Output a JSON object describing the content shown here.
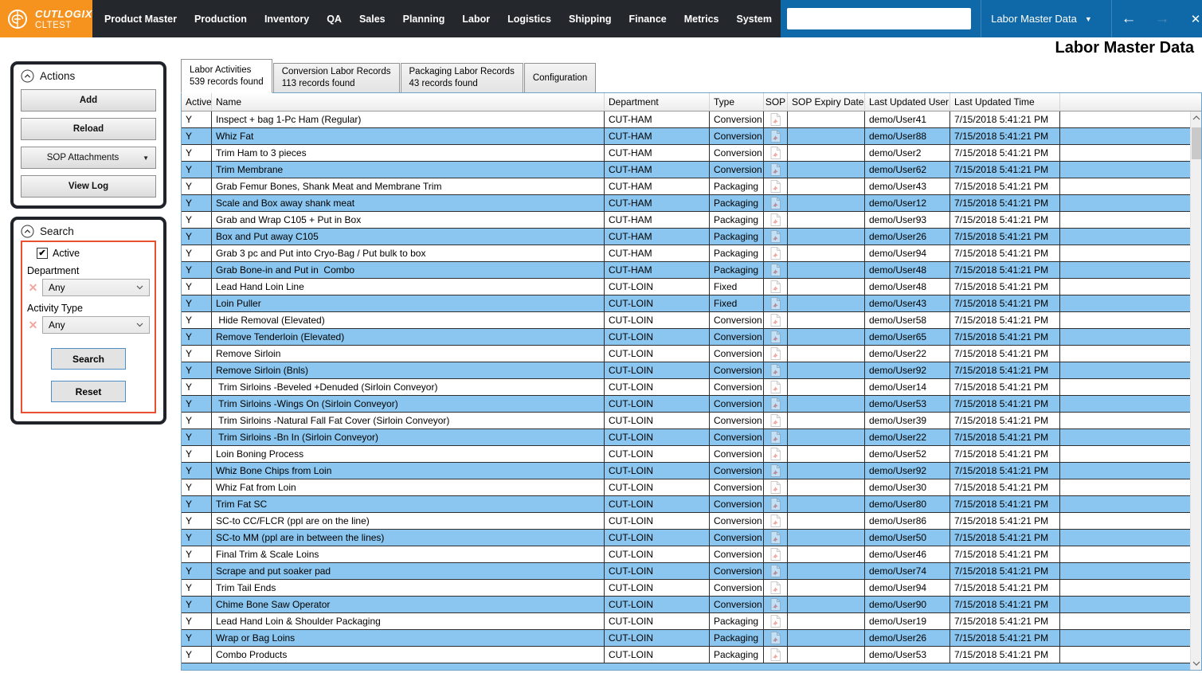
{
  "topbar": {
    "brand": {
      "name": "CUTLOGIX",
      "env": "CLTEST"
    },
    "menu": [
      "Product Master",
      "Production",
      "Inventory",
      "QA",
      "Sales",
      "Planning",
      "Labor",
      "Logistics",
      "Shipping",
      "Finance",
      "Metrics",
      "System"
    ],
    "search_value": "",
    "screen_selector": "Labor Master Data"
  },
  "page_title": "Labor Master Data",
  "sidebar": {
    "actions": {
      "title": "Actions",
      "add_label": "Add",
      "reload_label": "Reload",
      "sop_dropdown_label": "SOP Attachments",
      "view_log_label": "View Log"
    },
    "search": {
      "title": "Search",
      "active_label": "Active",
      "active_checked": true,
      "fields": [
        {
          "label": "Department",
          "value": "Any"
        },
        {
          "label": "Activity Type",
          "value": "Any"
        }
      ],
      "search_label": "Search",
      "reset_label": "Reset"
    }
  },
  "tabs": [
    {
      "label": "Labor Activities",
      "sub": "539 records found",
      "active": true
    },
    {
      "label": "Conversion Labor Records",
      "sub": "113 records found",
      "active": false
    },
    {
      "label": "Packaging Labor Records",
      "sub": "43 records found",
      "active": false
    },
    {
      "label": "Configuration",
      "sub": "",
      "active": false
    }
  ],
  "table": {
    "columns": [
      "Active",
      "Name",
      "Department",
      "Type",
      "SOP",
      "SOP Expiry Date",
      "Last Updated User",
      "Last Updated Time"
    ],
    "rows": [
      {
        "active": "Y",
        "name": "Inspect + bag 1-Pc Ham (Regular)",
        "department": "CUT-HAM",
        "type": "Conversion",
        "sop_expiry": "",
        "user": "demo/User41",
        "time": "7/15/2018 5:41:21 PM"
      },
      {
        "active": "Y",
        "name": "Whiz Fat",
        "department": "CUT-HAM",
        "type": "Conversion",
        "sop_expiry": "",
        "user": "demo/User88",
        "time": "7/15/2018 5:41:21 PM"
      },
      {
        "active": "Y",
        "name": "Trim Ham to 3 pieces",
        "department": "CUT-HAM",
        "type": "Conversion",
        "sop_expiry": "",
        "user": "demo/User2",
        "time": "7/15/2018 5:41:21 PM"
      },
      {
        "active": "Y",
        "name": "Trim Membrane",
        "department": "CUT-HAM",
        "type": "Conversion",
        "sop_expiry": "",
        "user": "demo/User62",
        "time": "7/15/2018 5:41:21 PM"
      },
      {
        "active": "Y",
        "name": "Grab Femur Bones, Shank Meat and Membrane Trim",
        "department": "CUT-HAM",
        "type": "Packaging",
        "sop_expiry": "",
        "user": "demo/User43",
        "time": "7/15/2018 5:41:21 PM"
      },
      {
        "active": "Y",
        "name": "Scale and Box away shank meat",
        "department": "CUT-HAM",
        "type": "Packaging",
        "sop_expiry": "",
        "user": "demo/User12",
        "time": "7/15/2018 5:41:21 PM"
      },
      {
        "active": "Y",
        "name": "Grab and Wrap C105 + Put in Box",
        "department": "CUT-HAM",
        "type": "Packaging",
        "sop_expiry": "",
        "user": "demo/User93",
        "time": "7/15/2018 5:41:21 PM"
      },
      {
        "active": "Y",
        "name": "Box and Put away C105",
        "department": "CUT-HAM",
        "type": "Packaging",
        "sop_expiry": "",
        "user": "demo/User26",
        "time": "7/15/2018 5:41:21 PM"
      },
      {
        "active": "Y",
        "name": "Grab 3 pc and Put into Cryo-Bag / Put bulk to box",
        "department": "CUT-HAM",
        "type": "Packaging",
        "sop_expiry": "",
        "user": "demo/User94",
        "time": "7/15/2018 5:41:21 PM"
      },
      {
        "active": "Y",
        "name": "Grab Bone-in and Put in  Combo",
        "department": "CUT-HAM",
        "type": "Packaging",
        "sop_expiry": "",
        "user": "demo/User48",
        "time": "7/15/2018 5:41:21 PM"
      },
      {
        "active": "Y",
        "name": "Lead Hand Loin Line",
        "department": "CUT-LOIN",
        "type": "Fixed",
        "sop_expiry": "",
        "user": "demo/User48",
        "time": "7/15/2018 5:41:21 PM"
      },
      {
        "active": "Y",
        "name": "Loin Puller",
        "department": "CUT-LOIN",
        "type": "Fixed",
        "sop_expiry": "",
        "user": "demo/User43",
        "time": "7/15/2018 5:41:21 PM"
      },
      {
        "active": "Y",
        "name": " Hide Removal (Elevated)",
        "department": "CUT-LOIN",
        "type": "Conversion",
        "sop_expiry": "",
        "user": "demo/User58",
        "time": "7/15/2018 5:41:21 PM"
      },
      {
        "active": "Y",
        "name": "Remove Tenderloin (Elevated)",
        "department": "CUT-LOIN",
        "type": "Conversion",
        "sop_expiry": "",
        "user": "demo/User65",
        "time": "7/15/2018 5:41:21 PM"
      },
      {
        "active": "Y",
        "name": "Remove Sirloin",
        "department": "CUT-LOIN",
        "type": "Conversion",
        "sop_expiry": "",
        "user": "demo/User22",
        "time": "7/15/2018 5:41:21 PM"
      },
      {
        "active": "Y",
        "name": "Remove Sirloin (Bnls)",
        "department": "CUT-LOIN",
        "type": "Conversion",
        "sop_expiry": "",
        "user": "demo/User92",
        "time": "7/15/2018 5:41:21 PM"
      },
      {
        "active": "Y",
        "name": " Trim Sirloins -Beveled +Denuded (Sirloin Conveyor)",
        "department": "CUT-LOIN",
        "type": "Conversion",
        "sop_expiry": "",
        "user": "demo/User14",
        "time": "7/15/2018 5:41:21 PM"
      },
      {
        "active": "Y",
        "name": " Trim Sirloins -Wings On (Sirloin Conveyor)",
        "department": "CUT-LOIN",
        "type": "Conversion",
        "sop_expiry": "",
        "user": "demo/User53",
        "time": "7/15/2018 5:41:21 PM"
      },
      {
        "active": "Y",
        "name": " Trim Sirloins -Natural Fall Fat Cover (Sirloin Conveyor)",
        "department": "CUT-LOIN",
        "type": "Conversion",
        "sop_expiry": "",
        "user": "demo/User39",
        "time": "7/15/2018 5:41:21 PM"
      },
      {
        "active": "Y",
        "name": " Trim Sirloins -Bn In (Sirloin Conveyor)",
        "department": "CUT-LOIN",
        "type": "Conversion",
        "sop_expiry": "",
        "user": "demo/User22",
        "time": "7/15/2018 5:41:21 PM"
      },
      {
        "active": "Y",
        "name": "Loin Boning Process",
        "department": "CUT-LOIN",
        "type": "Conversion",
        "sop_expiry": "",
        "user": "demo/User52",
        "time": "7/15/2018 5:41:21 PM"
      },
      {
        "active": "Y",
        "name": "Whiz Bone Chips from Loin",
        "department": "CUT-LOIN",
        "type": "Conversion",
        "sop_expiry": "",
        "user": "demo/User92",
        "time": "7/15/2018 5:41:21 PM"
      },
      {
        "active": "Y",
        "name": "Whiz Fat from Loin",
        "department": "CUT-LOIN",
        "type": "Conversion",
        "sop_expiry": "",
        "user": "demo/User30",
        "time": "7/15/2018 5:41:21 PM"
      },
      {
        "active": "Y",
        "name": "Trim Fat SC",
        "department": "CUT-LOIN",
        "type": "Conversion",
        "sop_expiry": "",
        "user": "demo/User80",
        "time": "7/15/2018 5:41:21 PM"
      },
      {
        "active": "Y",
        "name": "SC-to CC/FLCR (ppl are on the line)",
        "department": "CUT-LOIN",
        "type": "Conversion",
        "sop_expiry": "",
        "user": "demo/User86",
        "time": "7/15/2018 5:41:21 PM"
      },
      {
        "active": "Y",
        "name": "SC-to MM (ppl are in between the lines)",
        "department": "CUT-LOIN",
        "type": "Conversion",
        "sop_expiry": "",
        "user": "demo/User50",
        "time": "7/15/2018 5:41:21 PM"
      },
      {
        "active": "Y",
        "name": "Final Trim & Scale Loins",
        "department": "CUT-LOIN",
        "type": "Conversion",
        "sop_expiry": "",
        "user": "demo/User46",
        "time": "7/15/2018 5:41:21 PM"
      },
      {
        "active": "Y",
        "name": "Scrape and put soaker pad",
        "department": "CUT-LOIN",
        "type": "Conversion",
        "sop_expiry": "",
        "user": "demo/User74",
        "time": "7/15/2018 5:41:21 PM"
      },
      {
        "active": "Y",
        "name": "Trim Tail Ends",
        "department": "CUT-LOIN",
        "type": "Conversion",
        "sop_expiry": "",
        "user": "demo/User94",
        "time": "7/15/2018 5:41:21 PM"
      },
      {
        "active": "Y",
        "name": "Chime Bone Saw Operator",
        "department": "CUT-LOIN",
        "type": "Conversion",
        "sop_expiry": "",
        "user": "demo/User90",
        "time": "7/15/2018 5:41:21 PM"
      },
      {
        "active": "Y",
        "name": "Lead Hand Loin & Shoulder Packaging",
        "department": "CUT-LOIN",
        "type": "Packaging",
        "sop_expiry": "",
        "user": "demo/User19",
        "time": "7/15/2018 5:41:21 PM"
      },
      {
        "active": "Y",
        "name": "Wrap or Bag Loins",
        "department": "CUT-LOIN",
        "type": "Packaging",
        "sop_expiry": "",
        "user": "demo/User26",
        "time": "7/15/2018 5:41:21 PM"
      },
      {
        "active": "Y",
        "name": "Combo Products",
        "department": "CUT-LOIN",
        "type": "Packaging",
        "sop_expiry": "",
        "user": "demo/User53",
        "time": "7/15/2018 5:41:21 PM"
      }
    ]
  },
  "icons": {
    "brand": "brain-logo-icon",
    "screen_dropdown": "chevron-down-icon",
    "nav_back": "left-arrow-icon",
    "nav_forward": "right-arrow-icon",
    "close": "x-icon",
    "favorite": "star-icon",
    "panel_collapse": "chevron-up-circle-icon",
    "clear_filter": "x-clear-icon",
    "sop_attachment": "pdf-file-icon",
    "scroll_up": "chevron-up-icon",
    "scroll_down": "chevron-down-icon"
  },
  "colors": {
    "topbar_dark": "#24282d",
    "brand_orange": "#F6921E",
    "accent_blue": "#0F68A8",
    "row_alt_blue": "#8AC6EF",
    "search_highlight_red": "#E8502F",
    "button_border_blue": "#4f8fc5"
  }
}
